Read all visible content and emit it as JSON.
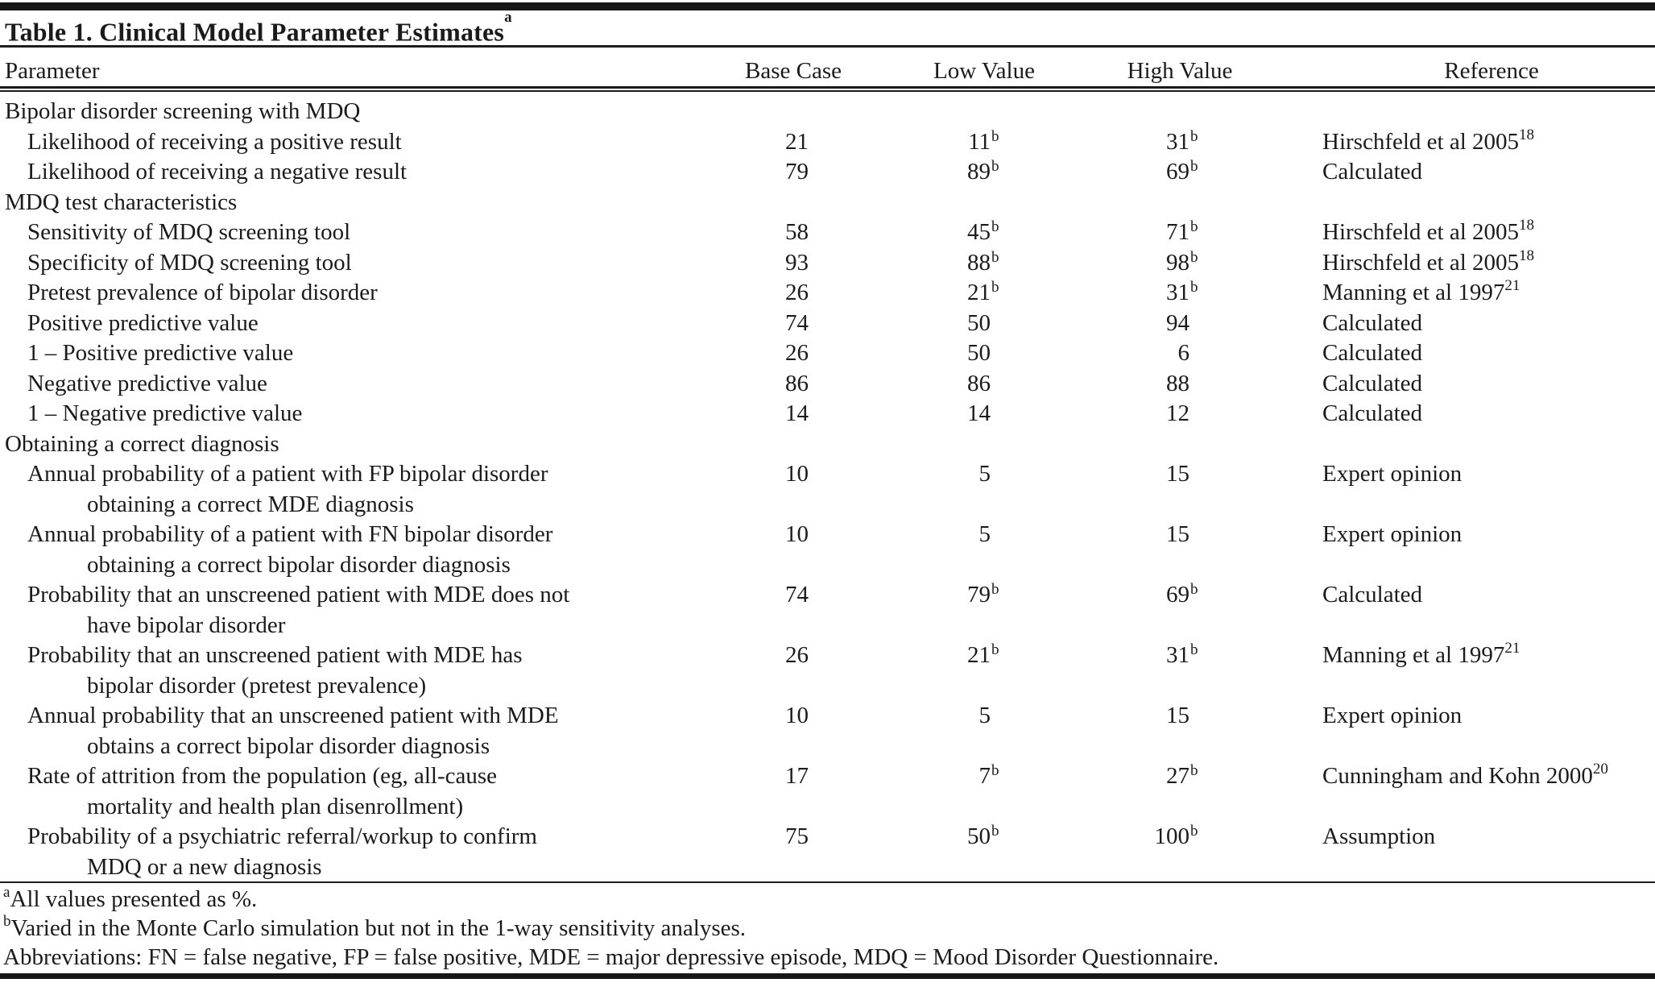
{
  "title": {
    "text": "Table 1. Clinical Model Parameter Estimates",
    "superscript": "a"
  },
  "columns": [
    "Parameter",
    "Base Case",
    "Low Value",
    "High Value",
    "Reference"
  ],
  "rows": [
    {
      "type": "section",
      "label": "Bipolar disorder screening with MDQ"
    },
    {
      "type": "param",
      "label": "Likelihood of receiving a positive result",
      "label2": "",
      "base": "21",
      "base_sup": "",
      "low": "11",
      "low_sup": "b",
      "high": "31",
      "high_sup": "b",
      "ref": "Hirschfeld et al 2005",
      "ref_sup": "18"
    },
    {
      "type": "param",
      "label": "Likelihood of receiving a negative result",
      "label2": "",
      "base": "79",
      "base_sup": "",
      "low": "89",
      "low_sup": "b",
      "high": "69",
      "high_sup": "b",
      "ref": "Calculated",
      "ref_sup": ""
    },
    {
      "type": "section",
      "label": "MDQ test characteristics"
    },
    {
      "type": "param",
      "label": "Sensitivity of MDQ screening tool",
      "label2": "",
      "base": "58",
      "base_sup": "",
      "low": "45",
      "low_sup": "b",
      "high": "71",
      "high_sup": "b",
      "ref": "Hirschfeld et al 2005",
      "ref_sup": "18"
    },
    {
      "type": "param",
      "label": "Specificity of MDQ screening tool",
      "label2": "",
      "base": "93",
      "base_sup": "",
      "low": "88",
      "low_sup": "b",
      "high": "98",
      "high_sup": "b",
      "ref": "Hirschfeld et al 2005",
      "ref_sup": "18"
    },
    {
      "type": "param",
      "label": "Pretest prevalence of bipolar disorder",
      "label2": "",
      "base": "26",
      "base_sup": "",
      "low": "21",
      "low_sup": "b",
      "high": "31",
      "high_sup": "b",
      "ref": "Manning et al 1997",
      "ref_sup": "21"
    },
    {
      "type": "param",
      "label": "Positive predictive value",
      "label2": "",
      "base": "74",
      "base_sup": "",
      "low": "50",
      "low_sup": "",
      "high": "94",
      "high_sup": "",
      "ref": "Calculated",
      "ref_sup": ""
    },
    {
      "type": "param",
      "label": "1 – Positive predictive value",
      "label2": "",
      "base": "26",
      "base_sup": "",
      "low": "50",
      "low_sup": "",
      "high": "6",
      "high_sup": "",
      "ref": "Calculated",
      "ref_sup": ""
    },
    {
      "type": "param",
      "label": "Negative predictive value",
      "label2": "",
      "base": "86",
      "base_sup": "",
      "low": "86",
      "low_sup": "",
      "high": "88",
      "high_sup": "",
      "ref": "Calculated",
      "ref_sup": ""
    },
    {
      "type": "param",
      "label": "1 – Negative predictive value",
      "label2": "",
      "base": "14",
      "base_sup": "",
      "low": "14",
      "low_sup": "",
      "high": "12",
      "high_sup": "",
      "ref": "Calculated",
      "ref_sup": ""
    },
    {
      "type": "section",
      "label": "Obtaining a correct diagnosis"
    },
    {
      "type": "param",
      "label": "Annual probability of a patient with FP bipolar disorder",
      "label2": "obtaining a correct MDE diagnosis",
      "base": "10",
      "base_sup": "",
      "low": "5",
      "low_sup": "",
      "high": "15",
      "high_sup": "",
      "ref": "Expert opinion",
      "ref_sup": ""
    },
    {
      "type": "param",
      "label": "Annual probability of a patient with FN bipolar disorder",
      "label2": "obtaining a correct bipolar disorder diagnosis",
      "base": "10",
      "base_sup": "",
      "low": "5",
      "low_sup": "",
      "high": "15",
      "high_sup": "",
      "ref": "Expert opinion",
      "ref_sup": ""
    },
    {
      "type": "param",
      "label": "Probability that an unscreened patient with MDE does not",
      "label2": "have bipolar disorder",
      "base": "74",
      "base_sup": "",
      "low": "79",
      "low_sup": "b",
      "high": "69",
      "high_sup": "b",
      "ref": "Calculated",
      "ref_sup": ""
    },
    {
      "type": "param",
      "label": "Probability that an unscreened patient with MDE has",
      "label2": "bipolar disorder (pretest prevalence)",
      "base": "26",
      "base_sup": "",
      "low": "21",
      "low_sup": "b",
      "high": "31",
      "high_sup": "b",
      "ref": "Manning et al 1997",
      "ref_sup": "21"
    },
    {
      "type": "param",
      "label": "Annual probability that an unscreened patient with MDE",
      "label2": "obtains a correct bipolar disorder diagnosis",
      "base": "10",
      "base_sup": "",
      "low": "5",
      "low_sup": "",
      "high": "15",
      "high_sup": "",
      "ref": "Expert opinion",
      "ref_sup": ""
    },
    {
      "type": "param",
      "label": "Rate of attrition from the population (eg, all-cause",
      "label2": "mortality and health plan disenrollment)",
      "base": "17",
      "base_sup": "",
      "low": "7",
      "low_sup": "b",
      "high": "27",
      "high_sup": "b",
      "ref": "Cunningham and Kohn 2000",
      "ref_sup": "20"
    },
    {
      "type": "param",
      "label": "Probability of a psychiatric referral/workup to confirm",
      "label2": "MDQ or a new diagnosis",
      "base": "75",
      "base_sup": "",
      "low": "50",
      "low_sup": "b",
      "high": "100",
      "high_sup": "b",
      "ref": "Assumption",
      "ref_sup": ""
    }
  ],
  "footnotes": [
    {
      "sup": "a",
      "text": "All values presented as %."
    },
    {
      "sup": "b",
      "text": "Varied in the Monte Carlo simulation but not in the 1-way sensitivity analyses."
    },
    {
      "sup": "",
      "text": "Abbreviations: FN = false negative, FP = false positive, MDE = major depressive episode, MDQ = Mood Disorder Questionnaire."
    }
  ]
}
